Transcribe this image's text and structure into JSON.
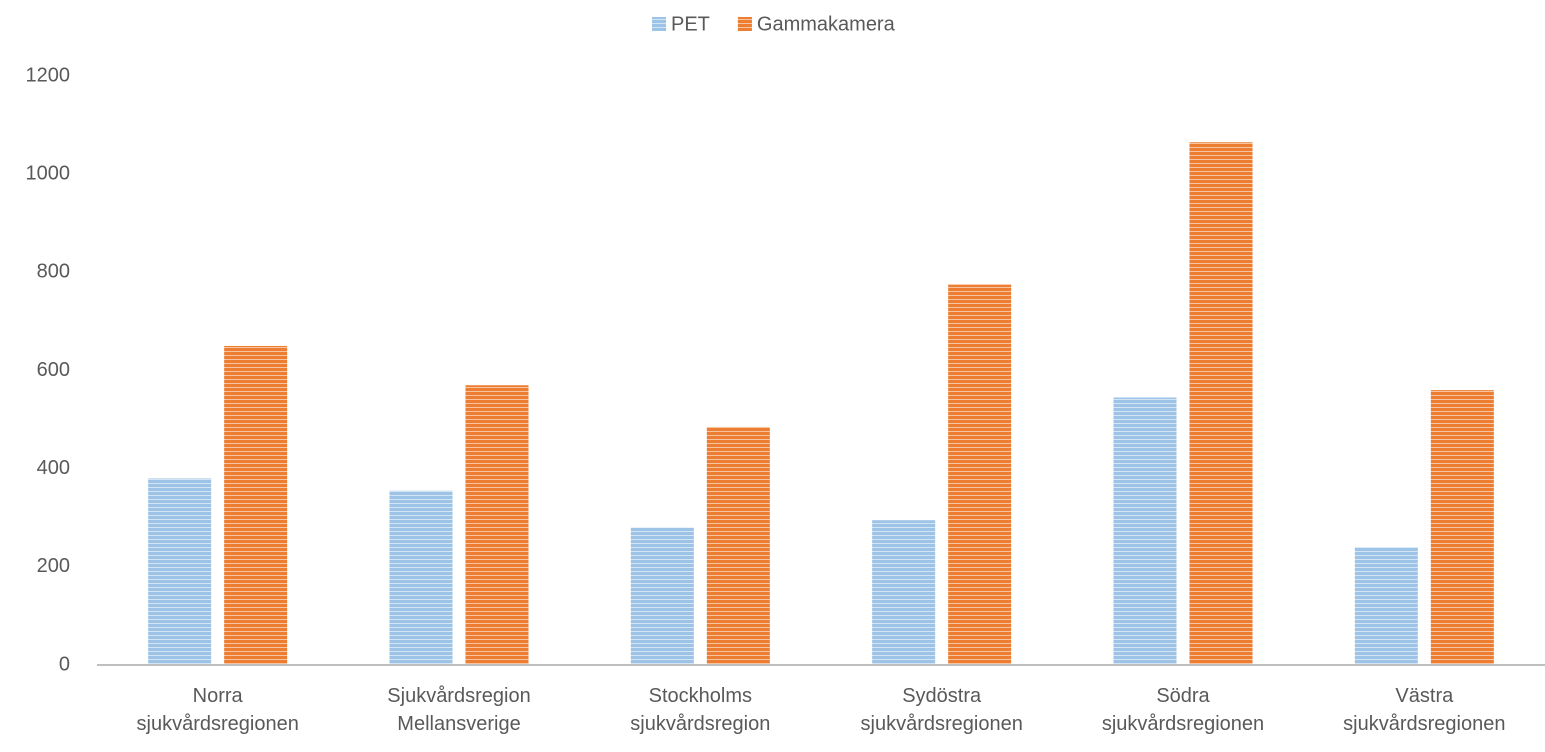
{
  "chart_data": {
    "type": "bar",
    "categories": [
      "Norra sjukvårdsregionen",
      "Sjukvårdsregion Mellansverige",
      "Stockholms sjukvårdsregion",
      "Sydöstra sjukvårdsregionen",
      "Södra sjukvårdsregionen",
      "Västra sjukvårdsregionen"
    ],
    "series": [
      {
        "name": "PET",
        "color": "#9dc3e6",
        "values": [
          380,
          355,
          280,
          295,
          545,
          240
        ]
      },
      {
        "name": "Gammakamera",
        "color": "#ed7d31",
        "values": [
          650,
          570,
          485,
          775,
          1065,
          560
        ]
      }
    ],
    "ylim": [
      0,
      1200
    ],
    "yticks": [
      0,
      200,
      400,
      600,
      800,
      1000,
      1200
    ],
    "grid": false,
    "legend": "top"
  }
}
